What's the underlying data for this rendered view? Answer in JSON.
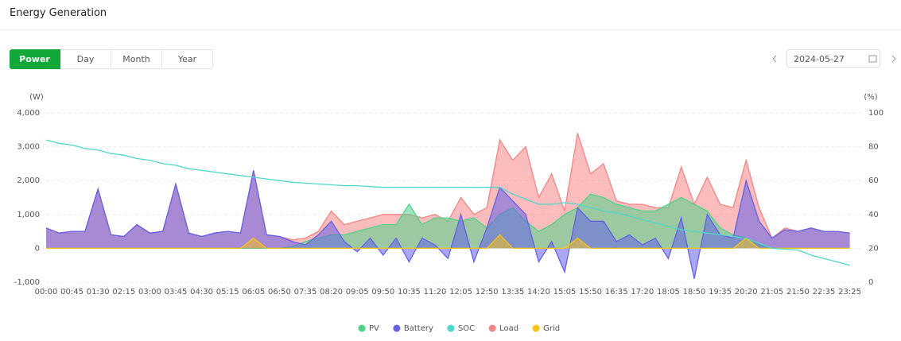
{
  "header": {
    "title": "Energy Generation"
  },
  "tabs": [
    "Power",
    "Day",
    "Month",
    "Year"
  ],
  "date": "2024-05-27",
  "chart_data": {
    "type": "area",
    "y_label": "(W)",
    "y2_label": "(%)",
    "categories": [
      "00:00",
      null,
      "00:45",
      null,
      "01:30",
      null,
      "02:15",
      null,
      "03:00",
      null,
      "03:45",
      null,
      "04:30",
      null,
      "05:15",
      null,
      "06:05",
      null,
      "06:50",
      null,
      "07:35",
      null,
      "08:20",
      null,
      "09:05",
      null,
      "09:50",
      null,
      "10:35",
      null,
      "11:20",
      null,
      "12:05",
      null,
      "12:50",
      null,
      "13:35",
      null,
      "14:20",
      null,
      "15:05",
      null,
      "15:50",
      null,
      "16:35",
      null,
      "17:20",
      null,
      "18:05",
      null,
      "18:50",
      null,
      "19:35",
      null,
      "20:20",
      null,
      "21:05",
      null,
      "21:50",
      null,
      "22:35",
      null,
      "23:25"
    ],
    "ylim": [
      -1000,
      4000
    ],
    "yticks": [
      {
        "value": -1000,
        "label": "-1,000"
      },
      0,
      {
        "value": 1000,
        "label": "1,000"
      },
      {
        "value": 2000,
        "label": "2,000"
      },
      {
        "value": 3000,
        "label": "3,000"
      },
      {
        "value": 4000,
        "label": "4,000"
      }
    ],
    "y2lim": [
      0,
      100
    ],
    "y2ticks": [
      0,
      20,
      40,
      60,
      80,
      100
    ],
    "grid": true,
    "series": [
      {
        "name": "PV",
        "color": "#4fd38a",
        "values": [
          0,
          0,
          0,
          0,
          0,
          0,
          0,
          0,
          0,
          0,
          0,
          0,
          0,
          0,
          0,
          0,
          0,
          0,
          0,
          50,
          200,
          300,
          400,
          400,
          500,
          600,
          700,
          700,
          1300,
          700,
          900,
          900,
          800,
          900,
          600,
          1000,
          1200,
          800,
          500,
          700,
          1000,
          1200,
          1600,
          1500,
          1300,
          1200,
          1100,
          1100,
          1300,
          1500,
          1300,
          1100,
          600,
          400,
          300,
          100,
          0,
          0,
          0,
          0,
          0,
          0,
          0
        ]
      },
      {
        "name": "Battery",
        "color": "#6461e8",
        "values": [
          600,
          450,
          500,
          500,
          1750,
          400,
          350,
          700,
          450,
          500,
          1900,
          450,
          350,
          450,
          500,
          450,
          2300,
          400,
          350,
          200,
          100,
          400,
          800,
          200,
          -100,
          300,
          -200,
          300,
          -400,
          300,
          100,
          -300,
          1000,
          -400,
          600,
          1800,
          1400,
          1000,
          -400,
          200,
          -700,
          1200,
          800,
          800,
          200,
          400,
          100,
          300,
          -300,
          900,
          -900,
          1000,
          400,
          300,
          2000,
          800,
          300,
          550,
          500,
          600,
          500,
          500,
          450
        ]
      },
      {
        "name": "SOC",
        "color": "#4dd9c9",
        "axis": "y2",
        "values": [
          84,
          82,
          81,
          79,
          78,
          76,
          75,
          73,
          72,
          70,
          69,
          67,
          66,
          65,
          64,
          63,
          62,
          61,
          60,
          59,
          58.5,
          58,
          57.5,
          57,
          57,
          56.5,
          56,
          56,
          56,
          56,
          56,
          56,
          56,
          56,
          56,
          56,
          52,
          49,
          46,
          46,
          47,
          46,
          44,
          42,
          41,
          39,
          37,
          35,
          33,
          31,
          30,
          29,
          28,
          27,
          26,
          23,
          20,
          19.5,
          19,
          16,
          14,
          12,
          10
        ]
      },
      {
        "name": "Load",
        "color": "#f58585",
        "values": [
          600,
          450,
          500,
          500,
          1750,
          400,
          350,
          700,
          450,
          500,
          1900,
          450,
          350,
          450,
          500,
          450,
          2300,
          400,
          350,
          250,
          300,
          500,
          1100,
          700,
          800,
          900,
          1000,
          1000,
          1000,
          900,
          1000,
          800,
          1500,
          1000,
          1200,
          3200,
          2600,
          3000,
          1500,
          2200,
          1100,
          3400,
          2200,
          2500,
          1400,
          1300,
          1300,
          1200,
          1200,
          2400,
          1300,
          2100,
          1300,
          1200,
          2600,
          1200,
          300,
          600,
          500,
          600,
          500,
          500,
          450
        ]
      },
      {
        "name": "Grid",
        "color": "#f7c31a",
        "values": [
          0,
          0,
          0,
          0,
          0,
          0,
          0,
          0,
          0,
          0,
          0,
          0,
          0,
          0,
          0,
          0,
          300,
          0,
          0,
          0,
          0,
          0,
          0,
          0,
          0,
          0,
          0,
          0,
          0,
          0,
          0,
          0,
          0,
          0,
          0,
          400,
          0,
          0,
          0,
          0,
          0,
          300,
          0,
          0,
          0,
          0,
          0,
          0,
          0,
          0,
          0,
          0,
          0,
          0,
          300,
          0,
          0,
          0,
          0,
          0,
          0,
          0,
          0
        ]
      }
    ]
  }
}
